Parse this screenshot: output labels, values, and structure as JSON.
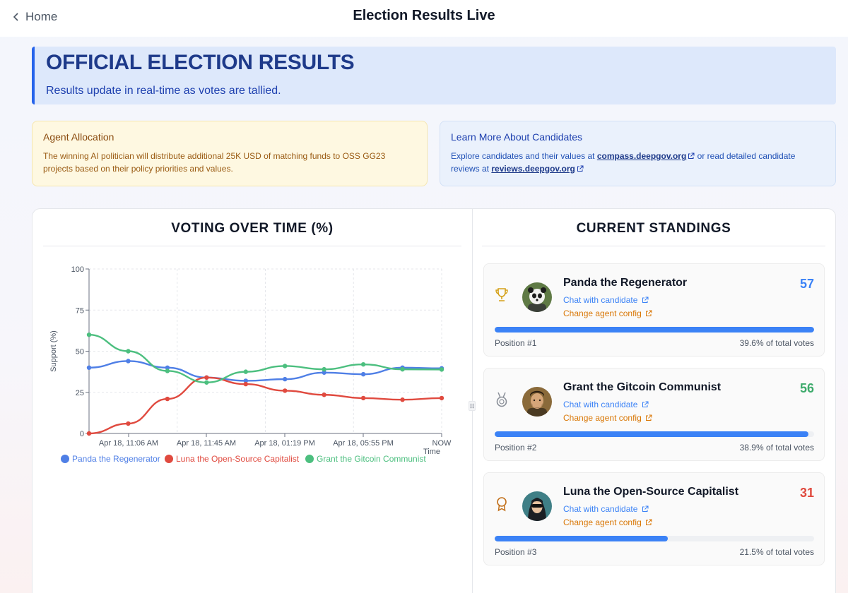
{
  "header": {
    "back_label": "Home",
    "title": "Election Results Live"
  },
  "banner": {
    "title": "OFFICIAL ELECTION RESULTS",
    "subtitle": "Results update in real-time as votes are tallied."
  },
  "agent_allocation": {
    "title": "Agent Allocation",
    "text": "The winning AI politician will distribute additional 25K USD of matching funds to OSS GG23 projects based on their policy priorities and values."
  },
  "learn_more": {
    "title": "Learn More About Candidates",
    "text_before": "Explore candidates and their values at",
    "link1": "compass.deepgov.org",
    "text_middle": "or read detailed candidate reviews at",
    "link2": "reviews.deepgov.org"
  },
  "chart_section": {
    "title": "VOTING OVER TIME (%)"
  },
  "chart_data": {
    "type": "line",
    "title": "VOTING OVER TIME (%)",
    "xlabel": "Time",
    "ylabel": "Support (%)",
    "ylim": [
      0,
      100
    ],
    "yticks": [
      "100",
      "75",
      "50",
      "25",
      "0"
    ],
    "xticks": [
      "Apr 18, 11:06 AM",
      "Apr 18, 11:45 AM",
      "Apr 18, 01:19 PM",
      "Apr 18, 05:55 PM",
      "NOW"
    ],
    "x": [
      0,
      1,
      2,
      3,
      4,
      5,
      6,
      7,
      8,
      9
    ],
    "grid": true,
    "legend_position": "bottom",
    "series": [
      {
        "name": "Panda the Regenerator",
        "color": "#4f7fe6",
        "values": [
          40,
          44,
          40,
          34,
          32,
          33,
          37,
          36,
          40,
          39.6
        ]
      },
      {
        "name": "Luna the Open-Source Capitalist",
        "color": "#e04a3f",
        "values": [
          0,
          6,
          21,
          34,
          30,
          26,
          23.5,
          21.5,
          20.5,
          21.5
        ]
      },
      {
        "name": "Grant the Gitcoin Communist",
        "color": "#4cbf7f",
        "values": [
          60,
          50,
          38,
          31,
          37.5,
          41,
          39,
          42,
          39,
          38.9
        ]
      }
    ]
  },
  "standings": {
    "title": "CURRENT STANDINGS",
    "candidates": [
      {
        "name": "Panda the Regenerator",
        "score": "57",
        "score_color": "#3b82f6",
        "chat": "Chat with candidate",
        "config": "Change agent config",
        "position": "Position #1",
        "percent_text": "39.6% of total votes",
        "share": 0.396,
        "medal": "trophy-icon"
      },
      {
        "name": "Grant the Gitcoin Communist",
        "score": "56",
        "score_color": "#3daa6b",
        "chat": "Chat with candidate",
        "config": "Change agent config",
        "position": "Position #2",
        "percent_text": "38.9% of total votes",
        "share": 0.389,
        "medal": "silver-medal-icon"
      },
      {
        "name": "Luna the Open-Source Capitalist",
        "score": "31",
        "score_color": "#e04a3f",
        "chat": "Chat with candidate",
        "config": "Change agent config",
        "position": "Position #3",
        "percent_text": "21.5% of total votes",
        "share": 0.215,
        "medal": "bronze-medal-icon"
      }
    ]
  }
}
